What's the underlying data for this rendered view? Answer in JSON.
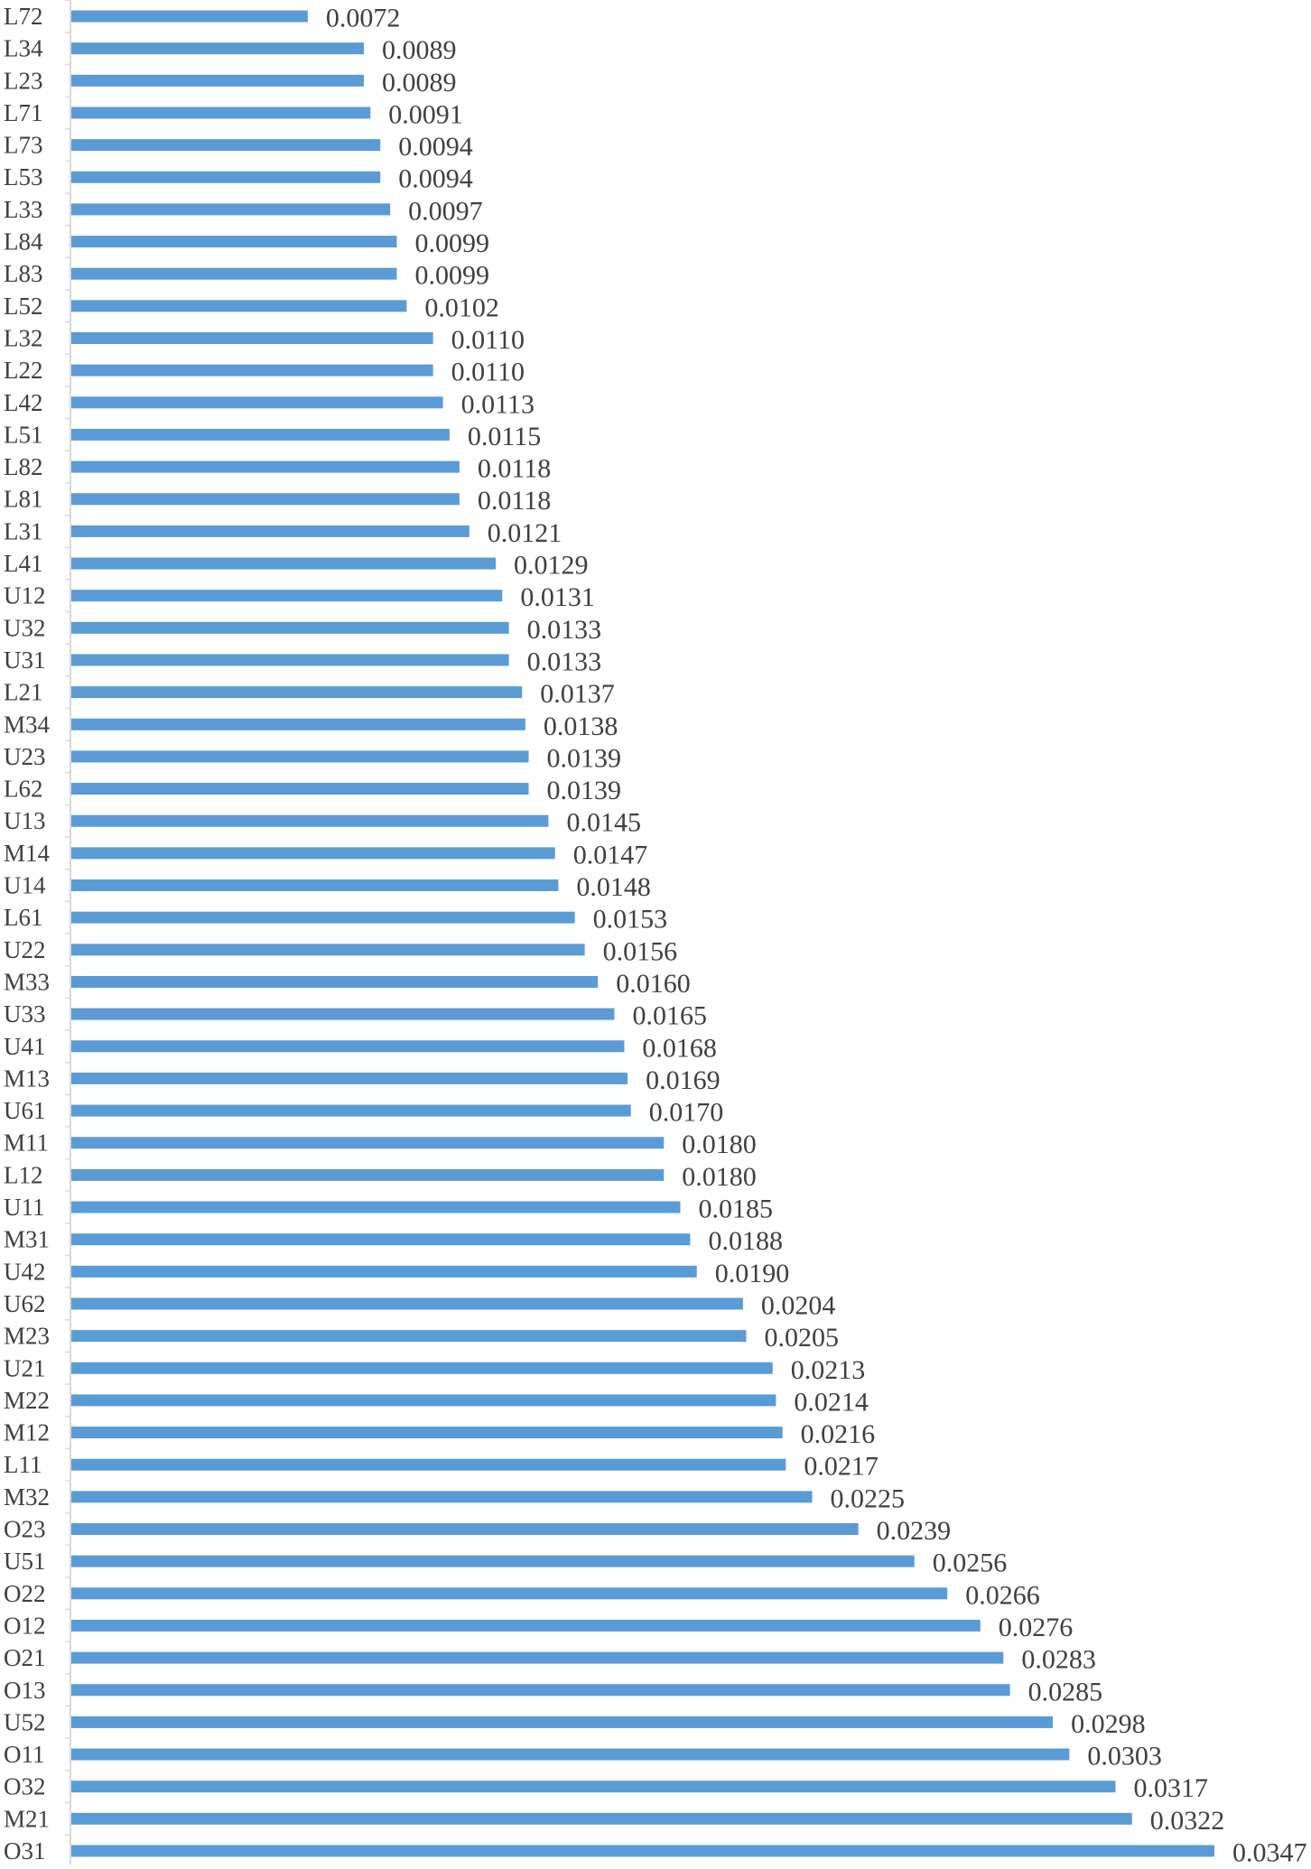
{
  "chart_data": {
    "type": "bar",
    "orientation": "horizontal",
    "categories": [
      "L72",
      "L34",
      "L23",
      "L71",
      "L73",
      "L53",
      "L33",
      "L84",
      "L83",
      "L52",
      "L32",
      "L22",
      "L42",
      "L51",
      "L82",
      "L81",
      "L31",
      "L41",
      "U12",
      "U32",
      "U31",
      "L21",
      "M34",
      "U23",
      "L62",
      "U13",
      "M14",
      "U14",
      "L61",
      "U22",
      "M33",
      "U33",
      "U41",
      "M13",
      "U61",
      "M11",
      "L12",
      "U11",
      "M31",
      "U42",
      "U62",
      "M23",
      "U21",
      "M22",
      "M12",
      "L11",
      "M32",
      "O23",
      "U51",
      "O22",
      "O12",
      "O21",
      "O13",
      "U52",
      "O11",
      "O32",
      "M21",
      "O31"
    ],
    "values": [
      0.0072,
      0.0089,
      0.0089,
      0.0091,
      0.0094,
      0.0094,
      0.0097,
      0.0099,
      0.0099,
      0.0102,
      0.011,
      0.011,
      0.0113,
      0.0115,
      0.0118,
      0.0118,
      0.0121,
      0.0129,
      0.0131,
      0.0133,
      0.0133,
      0.0137,
      0.0138,
      0.0139,
      0.0139,
      0.0145,
      0.0147,
      0.0148,
      0.0153,
      0.0156,
      0.016,
      0.0165,
      0.0168,
      0.0169,
      0.017,
      0.018,
      0.018,
      0.0185,
      0.0188,
      0.019,
      0.0204,
      0.0205,
      0.0213,
      0.0214,
      0.0216,
      0.0217,
      0.0225,
      0.0239,
      0.0256,
      0.0266,
      0.0276,
      0.0283,
      0.0285,
      0.0298,
      0.0303,
      0.0317,
      0.0322,
      0.0347
    ],
    "value_labels": [
      "0.0072",
      "0.0089",
      "0.0089",
      "0.0091",
      "0.0094",
      "0.0094",
      "0.0097",
      "0.0099",
      "0.0099",
      "0.0102",
      "0.0110",
      "0.0110",
      "0.0113",
      "0.0115",
      "0.0118",
      "0.0118",
      "0.0121",
      "0.0129",
      "0.0131",
      "0.0133",
      "0.0133",
      "0.0137",
      "0.0138",
      "0.0139",
      "0.0139",
      "0.0145",
      "0.0147",
      "0.0148",
      "0.0153",
      "0.0156",
      "0.0160",
      "0.0165",
      "0.0168",
      "0.0169",
      "0.0170",
      "0.0180",
      "0.0180",
      "0.0185",
      "0.0188",
      "0.0190",
      "0.0204",
      "0.0205",
      "0.0213",
      "0.0214",
      "0.0216",
      "0.0217",
      "0.0225",
      "0.0239",
      "0.0256",
      "0.0266",
      "0.0276",
      "0.0283",
      "0.0285",
      "0.0298",
      "0.0303",
      "0.0317",
      "0.0322",
      "0.0347"
    ],
    "title": "",
    "xlabel": "",
    "ylabel": "",
    "xlim": [
      0,
      0.0347
    ],
    "grid": false,
    "legend": "none",
    "bar_color": "#5b9bd5",
    "axis_color": "#d9d9d9"
  }
}
